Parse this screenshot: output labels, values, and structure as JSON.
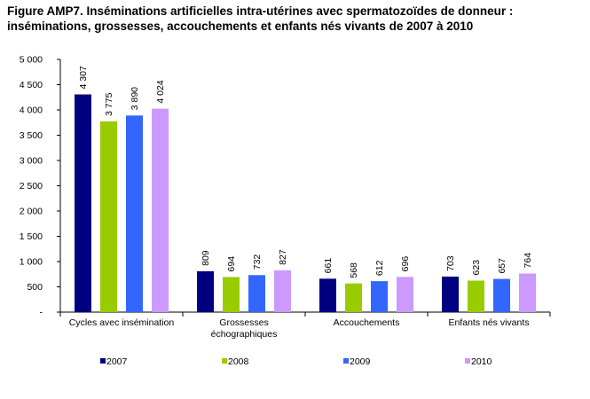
{
  "title_line1": "Figure AMP7. Inséminations artificielles intra-utérines avec spermatozoïdes de donneur :",
  "title_line2": "inséminations, grossesses, accouchements et enfants nés vivants de 2007 à 2010",
  "chart_data": {
    "type": "bar",
    "categories": [
      [
        "Cycles avec insémination"
      ],
      [
        "Grossesses",
        "échographiques"
      ],
      [
        "Accouchements"
      ],
      [
        "Enfants nés vivants"
      ]
    ],
    "series": [
      {
        "name": "2007",
        "color": "#000080",
        "values": [
          4307,
          809,
          661,
          703
        ],
        "labels": [
          "4 307",
          "809",
          "661",
          "703"
        ]
      },
      {
        "name": "2008",
        "color": "#99CC00",
        "values": [
          3775,
          694,
          568,
          623
        ],
        "labels": [
          "3 775",
          "694",
          "568",
          "623"
        ]
      },
      {
        "name": "2009",
        "color": "#3366FF",
        "values": [
          3890,
          732,
          612,
          657
        ],
        "labels": [
          "3 890",
          "732",
          "612",
          "657"
        ]
      },
      {
        "name": "2010",
        "color": "#CC99FF",
        "values": [
          4024,
          827,
          696,
          764
        ],
        "labels": [
          "4 024",
          "827",
          "696",
          "764"
        ]
      }
    ],
    "ylim": [
      0,
      5000
    ],
    "yticks": [
      0,
      500,
      1000,
      1500,
      2000,
      2500,
      3000,
      3500,
      4000,
      4500,
      5000
    ],
    "ytick_labels": [
      "-",
      "500",
      "1 000",
      "1 500",
      "2 000",
      "2 500",
      "3 000",
      "3 500",
      "4 000",
      "4 500",
      "5 000"
    ],
    "grid": false,
    "legend_position": "bottom"
  }
}
